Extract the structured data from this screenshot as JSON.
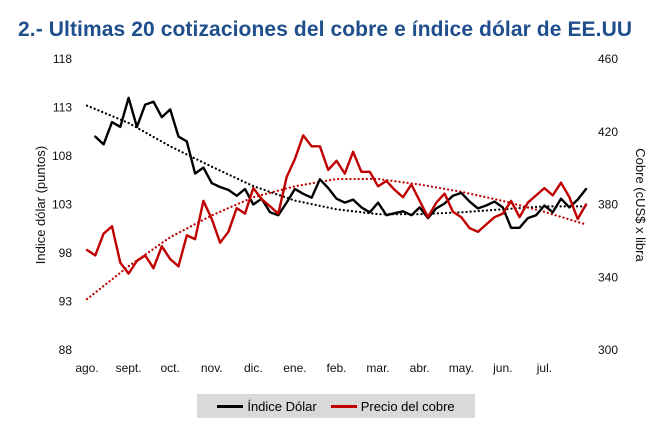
{
  "title": "2.- Ultimas 20 cotizaciones del cobre e índice dólar de EE.UU",
  "colors": {
    "title": "#1f4e8c",
    "dollar": "#000000",
    "copper": "#c00000"
  },
  "chart_data": {
    "type": "line",
    "title": "2.- Ultimas 20 cotizaciones del cobre e índice dólar de EE.UU",
    "x_categories": [
      "ago.",
      "sept.",
      "oct.",
      "nov.",
      "dic.",
      "ene.",
      "feb.",
      "mar.",
      "abr.",
      "may.",
      "jun.",
      "jul."
    ],
    "ylabel_left": "Indice dólar (puntos)",
    "ylabel_right": "Cobre (cUS$ x libra",
    "ylim_left": [
      88,
      118
    ],
    "yticks_left": [
      88,
      93,
      98,
      103,
      108,
      113,
      118
    ],
    "ylim_right": [
      300,
      460
    ],
    "yticks_right": [
      300,
      340,
      380,
      420,
      460
    ],
    "grid": false,
    "legend_position": "bottom",
    "series": [
      {
        "name": "Índice Dólar",
        "axis": "left",
        "style": "solid",
        "x": [
          0.2,
          0.4,
          0.6,
          0.8,
          1.0,
          1.2,
          1.4,
          1.6,
          1.8,
          2.0,
          2.2,
          2.4,
          2.6,
          2.8,
          3.0,
          3.2,
          3.4,
          3.6,
          3.8,
          4.0,
          4.2,
          4.4,
          4.6,
          4.8,
          5.0,
          5.2,
          5.4,
          5.6,
          5.8,
          6.0,
          6.2,
          6.4,
          6.6,
          6.8,
          7.0,
          7.2,
          7.4,
          7.6,
          7.8,
          8.0,
          8.2,
          8.4,
          8.6,
          8.8,
          9.0,
          9.2,
          9.4,
          9.6,
          9.8,
          10.0,
          10.2,
          10.4,
          10.6,
          10.8,
          11.0,
          11.2,
          11.4,
          11.6,
          11.8,
          12.0
        ],
        "values": [
          110.0,
          109.2,
          111.5,
          111.0,
          114.0,
          111.0,
          113.3,
          113.6,
          112.0,
          112.8,
          110.0,
          109.5,
          106.2,
          106.8,
          105.2,
          104.8,
          104.5,
          103.9,
          104.6,
          103.0,
          103.6,
          102.2,
          101.9,
          103.2,
          104.6,
          104.1,
          103.7,
          105.6,
          104.7,
          103.6,
          103.2,
          103.5,
          102.7,
          102.2,
          103.2,
          101.9,
          102.1,
          102.3,
          101.9,
          102.7,
          101.6,
          102.6,
          103.1,
          103.9,
          104.2,
          103.3,
          102.6,
          102.9,
          103.3,
          102.7,
          100.6,
          100.6,
          101.6,
          101.9,
          102.9,
          102.2,
          103.6,
          102.7,
          103.5,
          104.6
        ]
      },
      {
        "name": "Precio del cobre",
        "axis": "right",
        "style": "solid",
        "x": [
          0.0,
          0.2,
          0.4,
          0.6,
          0.8,
          1.0,
          1.2,
          1.4,
          1.6,
          1.8,
          2.0,
          2.2,
          2.4,
          2.6,
          2.8,
          3.0,
          3.2,
          3.4,
          3.6,
          3.8,
          4.0,
          4.2,
          4.4,
          4.6,
          4.8,
          5.0,
          5.2,
          5.4,
          5.6,
          5.8,
          6.0,
          6.2,
          6.4,
          6.6,
          6.8,
          7.0,
          7.2,
          7.4,
          7.6,
          7.8,
          8.0,
          8.2,
          8.4,
          8.6,
          8.8,
          9.0,
          9.2,
          9.4,
          9.6,
          9.8,
          10.0,
          10.2,
          10.4,
          10.6,
          10.8,
          11.0,
          11.2,
          11.4,
          11.6,
          11.8,
          12.0
        ],
        "values": [
          355,
          352,
          364,
          368,
          348,
          342,
          349,
          352,
          345,
          357,
          350,
          346,
          363,
          361,
          382,
          372,
          359,
          365,
          378,
          375,
          389,
          383,
          379,
          375,
          395,
          405,
          418,
          412,
          412,
          399,
          404,
          397,
          409,
          398,
          398,
          390,
          393,
          388,
          384,
          391,
          382,
          373,
          381,
          386,
          376,
          373,
          367,
          365,
          369,
          373,
          375,
          382,
          373,
          381,
          385,
          389,
          385,
          392,
          384,
          372,
          380
        ]
      },
      {
        "name": "",
        "axis": "left",
        "style": "dotted",
        "x": [
          0.0,
          1.0,
          2.0,
          3.0,
          4.0,
          5.0,
          6.0,
          7.0,
          8.0,
          9.0,
          10.0,
          11.0,
          12.0
        ],
        "values": [
          113.2,
          111.4,
          109.0,
          106.9,
          104.9,
          103.4,
          102.5,
          102.0,
          102.0,
          102.2,
          102.5,
          102.8,
          102.8
        ]
      },
      {
        "name": "",
        "axis": "right",
        "style": "dotted",
        "x": [
          0.0,
          1.0,
          2.0,
          3.0,
          4.0,
          5.0,
          6.0,
          7.0,
          8.0,
          9.0,
          10.0,
          11.0,
          12.0
        ],
        "values": [
          328,
          346,
          362,
          374,
          384,
          390,
          394,
          394,
          391,
          387,
          382,
          376,
          369
        ]
      }
    ]
  }
}
